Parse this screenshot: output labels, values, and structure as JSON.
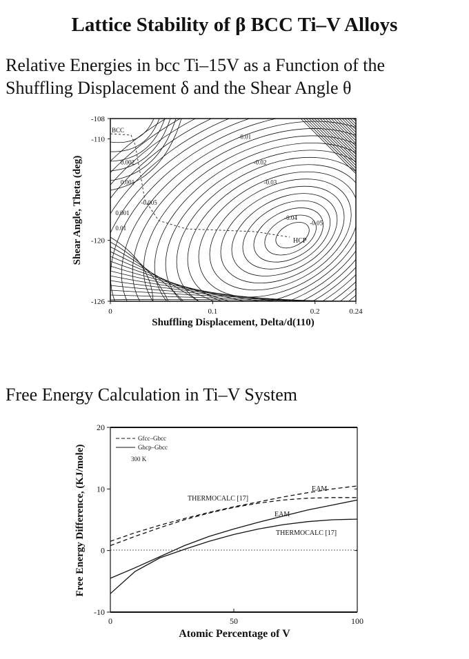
{
  "page": {
    "title": "Lattice Stability of β BCC Ti–V Alloys",
    "section1_line1": "Relative Energies in bcc Ti–15V as a Function of the",
    "section1_line2": "Shuffling Displacement δ and the Shear Angle θ",
    "section2": "Free Energy Calculation in Ti–V System"
  },
  "chart_data": [
    {
      "type": "contour",
      "title": "",
      "xlabel": "Shuffling Displacement, Delta/d(110)",
      "ylabel": "Shear Angle, Theta (deg)",
      "xlim": [
        0,
        0.24
      ],
      "ylim": [
        -126,
        -108
      ],
      "x_ticks": [
        "0",
        "0.1",
        "0.2",
        "0.24"
      ],
      "y_ticks": [
        "-108",
        "-110",
        "-120",
        "-126"
      ],
      "minimum": {
        "label": "HCP",
        "x": 0.18,
        "y": -119.5,
        "energy": -0.05
      },
      "start": {
        "label": "BCC",
        "x": 0.0,
        "y": -109.5
      },
      "contour_labels": [
        {
          "text": "0.002",
          "x": 0.01,
          "y": -112.5
        },
        {
          "text": "0.001",
          "x": 0.01,
          "y": -114.5
        },
        {
          "text": "-0.005",
          "x": 0.03,
          "y": -116.5
        },
        {
          "text": "0.001",
          "x": 0.005,
          "y": -117.5
        },
        {
          "text": "0.01",
          "x": 0.005,
          "y": -119
        },
        {
          "text": "-0.01",
          "x": 0.125,
          "y": -110
        },
        {
          "text": "-0.02",
          "x": 0.14,
          "y": -112.5
        },
        {
          "text": "-0.03",
          "x": 0.15,
          "y": -114.5
        },
        {
          "text": "-0.04",
          "x": 0.17,
          "y": -118
        },
        {
          "text": "-0.05",
          "x": 0.195,
          "y": -118.5
        }
      ]
    },
    {
      "type": "line",
      "title": "",
      "xlabel": "Atomic Percentage of V",
      "ylabel": "Free Energy Difference, (KJ/mole)",
      "xlim": [
        0,
        100
      ],
      "ylim": [
        -10,
        20
      ],
      "x_ticks": [
        "0",
        "50",
        "100"
      ],
      "y_ticks": [
        "20",
        "10",
        "0",
        "-10"
      ],
      "legend": {
        "placement": "top-left",
        "entries": [
          {
            "label": "Gfcc–Gbcc",
            "style": "dashed"
          },
          {
            "label": "Ghcp–Gbcc",
            "style": "solid"
          }
        ],
        "note": "300 K"
      },
      "series": [
        {
          "name": "",
          "style": "dashed",
          "end_label": "EAM",
          "x": [
            0,
            10,
            20,
            30,
            40,
            50,
            60,
            70,
            80,
            90,
            100
          ],
          "y": [
            1.5,
            2.9,
            4.1,
            5.2,
            6.2,
            7.1,
            7.9,
            8.7,
            9.4,
            10.0,
            10.5
          ]
        },
        {
          "name": "",
          "style": "dashed",
          "end_label": "THERMOCALC [17]",
          "x": [
            0,
            10,
            20,
            30,
            40,
            50,
            60,
            70,
            80,
            90,
            100
          ],
          "y": [
            0.8,
            2.3,
            3.7,
            5.0,
            6.1,
            7.0,
            7.7,
            8.2,
            8.5,
            8.6,
            8.6
          ]
        },
        {
          "name": "",
          "style": "solid",
          "end_label": "EAM",
          "x": [
            0,
            10,
            20,
            30,
            40,
            50,
            60,
            70,
            80,
            90,
            100
          ],
          "y": [
            -4.5,
            -2.8,
            -1.0,
            0.8,
            2.3,
            3.5,
            4.6,
            5.6,
            6.6,
            7.4,
            8.2
          ]
        },
        {
          "name": "",
          "style": "solid",
          "end_label": "THERMOCALC [17]",
          "x": [
            0,
            10,
            20,
            30,
            40,
            50,
            60,
            70,
            80,
            90,
            100
          ],
          "y": [
            -7.0,
            -3.4,
            -1.2,
            0.2,
            1.5,
            2.6,
            3.5,
            4.2,
            4.7,
            5.0,
            5.1
          ]
        }
      ]
    }
  ]
}
